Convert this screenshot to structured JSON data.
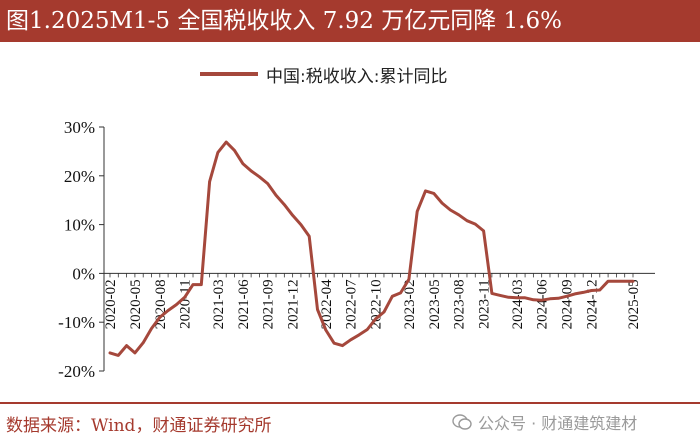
{
  "header": {
    "title": "图1.2025M1-5 全国税收收入 7.92 万亿元同降 1.6%"
  },
  "footer": {
    "source": "数据来源：Wind，财通证券研究所",
    "watermark": "公众号 · 财通建筑建材"
  },
  "colors": {
    "title_bg": "#a53a2e",
    "line": "#a5483c"
  },
  "chart_data": {
    "type": "line",
    "title": "",
    "xlabel": "",
    "ylabel": "",
    "ylim": [
      -20,
      30
    ],
    "yticks": [
      -20,
      -10,
      0,
      10,
      20,
      30
    ],
    "ytick_labels": [
      "-20%",
      "-10%",
      "0%",
      "10%",
      "20%",
      "30%"
    ],
    "x": [
      "2020-02",
      "2020-03",
      "2020-04",
      "2020-05",
      "2020-06",
      "2020-07",
      "2020-08",
      "2020-09",
      "2020-10",
      "2020-11",
      "2020-12",
      "2021-01",
      "2021-02",
      "2021-03",
      "2021-04",
      "2021-05",
      "2021-06",
      "2021-07",
      "2021-08",
      "2021-09",
      "2021-10",
      "2021-11",
      "2021-12",
      "2022-01",
      "2022-02",
      "2022-03",
      "2022-04",
      "2022-05",
      "2022-06",
      "2022-07",
      "2022-08",
      "2022-09",
      "2022-10",
      "2022-11",
      "2022-12",
      "2023-01",
      "2023-02",
      "2023-03",
      "2023-04",
      "2023-05",
      "2023-06",
      "2023-07",
      "2023-08",
      "2023-09",
      "2023-10",
      "2023-11",
      "2023-12",
      "2024-01",
      "2024-02",
      "2024-03",
      "2024-04",
      "2024-05",
      "2024-06",
      "2024-07",
      "2024-08",
      "2024-09",
      "2024-10",
      "2024-11",
      "2024-12",
      "2025-01",
      "2025-02",
      "2025-03",
      "2025-04",
      "2025-05"
    ],
    "xtick_labels": [
      "2020-02",
      "2020-05",
      "2020-08",
      "2020-11",
      "2021-03",
      "2021-06",
      "2021-09",
      "2021-12",
      "2022-04",
      "2022-07",
      "2022-10",
      "2023-02",
      "2023-05",
      "2023-08",
      "2023-11",
      "2024-03",
      "2024-06",
      "2024-09",
      "2024-12",
      "2025-05"
    ],
    "legend": "top-center",
    "grid": false,
    "series": [
      {
        "name": "中国:税收收入:累计同比",
        "values": [
          -16.3,
          -16.8,
          -14.8,
          -16.3,
          -14.2,
          -11.3,
          -9.0,
          -7.6,
          -6.4,
          -4.9,
          -2.3,
          -2.3,
          18.8,
          24.8,
          26.9,
          25.2,
          22.5,
          21.0,
          19.8,
          18.4,
          16.0,
          14.1,
          11.9,
          10.0,
          7.6,
          -7.4,
          -11.6,
          -14.3,
          -14.8,
          -13.6,
          -12.6,
          -11.5,
          -9.3,
          -7.9,
          -4.7,
          -4.0,
          -1.2,
          12.7,
          16.9,
          16.4,
          14.4,
          13.0,
          12.0,
          10.8,
          10.1,
          8.7,
          -4.1,
          -4.5,
          -4.9,
          -5.0,
          -5.0,
          -5.4,
          -5.5,
          -5.2,
          -5.1,
          -4.7,
          -4.2,
          -3.9,
          -3.5,
          -3.4,
          -1.6,
          -1.6,
          -1.6,
          -1.6
        ]
      }
    ]
  }
}
